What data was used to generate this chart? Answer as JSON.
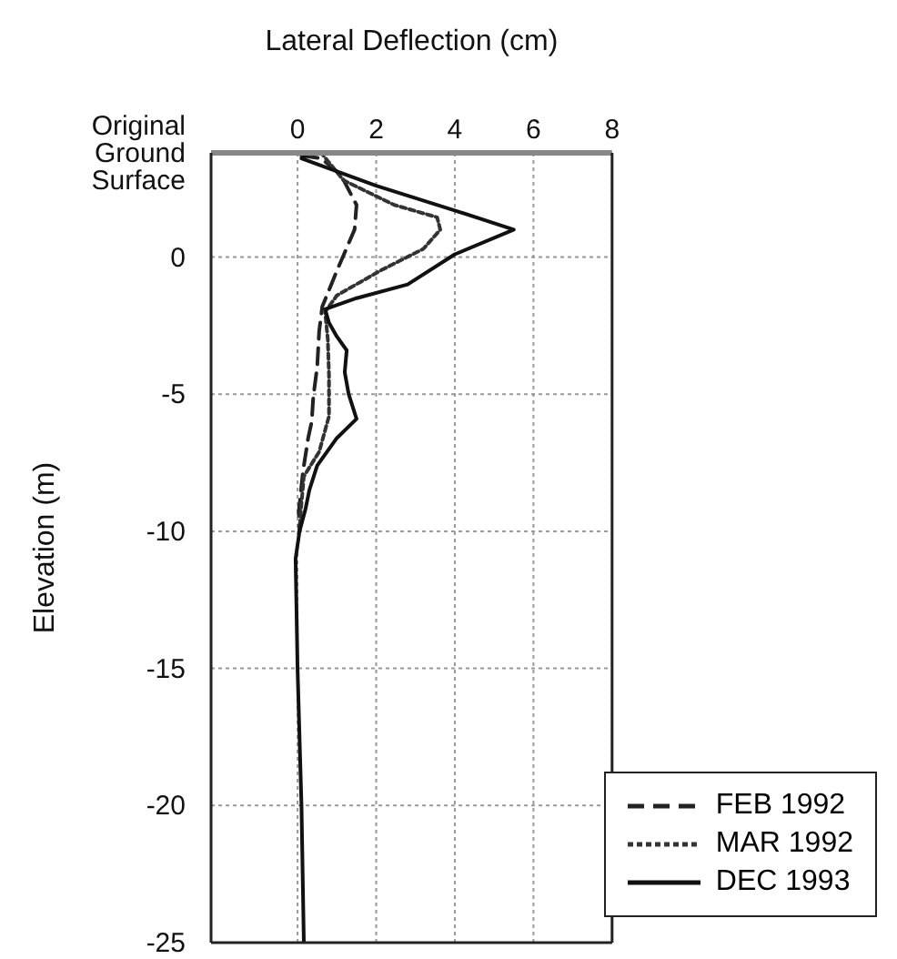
{
  "chart_data": {
    "type": "line",
    "xlabel": "Lateral Deflection (cm)",
    "ylabel": "Elevation (m)",
    "xlim": [
      -2.2,
      8
    ],
    "xticks": [
      0,
      2,
      4,
      6,
      8
    ],
    "ylim": [
      -25,
      3.8
    ],
    "yticks": [
      -25,
      -20,
      -15,
      -10,
      -5,
      0,
      {
        "value": 3.8,
        "label": "Original Ground Surface"
      }
    ],
    "grid": true,
    "legend": "bottom right",
    "marker": "none",
    "series": [
      {
        "name": "FEB 1992",
        "color": "#222222",
        "line_style": "dashed",
        "x": [
          0.1,
          0.6,
          1.1,
          1.5,
          1.45,
          1.0,
          0.63,
          0.55,
          0.5,
          0.4,
          0.36,
          0.27,
          0.14,
          0.03,
          0.05
        ],
        "values": [
          3.7,
          3.6,
          3.0,
          1.9,
          1.0,
          -0.5,
          -1.8,
          -2.7,
          -4.0,
          -5.1,
          -6.0,
          -6.6,
          -7.8,
          -9.3,
          -10
        ]
      },
      {
        "name": "MAR 1992",
        "color": "#333333",
        "line_style": "dotted",
        "x": [
          0.1,
          0.6,
          1.17,
          2.46,
          3.55,
          3.63,
          3.2,
          2.1,
          1.0,
          0.7,
          0.77,
          0.8,
          0.8,
          0.55,
          0.16,
          0.08,
          0.05
        ],
        "values": [
          3.7,
          3.8,
          2.8,
          1.9,
          1.45,
          1.0,
          0.3,
          -0.5,
          -1.4,
          -2.0,
          -3.0,
          -4.3,
          -5.8,
          -7.1,
          -8.0,
          -9.3,
          -10
        ]
      },
      {
        "name": "DEC 1993",
        "color": "#111111",
        "line_style": "solid",
        "x": [
          0.3,
          0.1,
          2,
          4,
          5.5,
          4,
          2.8,
          1.5,
          0.7,
          0.8,
          1.0,
          1.25,
          1.2,
          1.3,
          1.5,
          1.0,
          0.5,
          0.3,
          0.2,
          0.05,
          -0.05,
          0,
          0.1,
          0.16
        ],
        "values": [
          3.8,
          3.6,
          2.6,
          1.7,
          1.0,
          0.1,
          -1.0,
          -1.5,
          -1.9,
          -2.4,
          -2.9,
          -3.4,
          -4.2,
          -5.0,
          -5.9,
          -6.6,
          -7.6,
          -8.5,
          -9.2,
          -10,
          -11,
          -15,
          -20,
          -25
        ]
      }
    ]
  }
}
